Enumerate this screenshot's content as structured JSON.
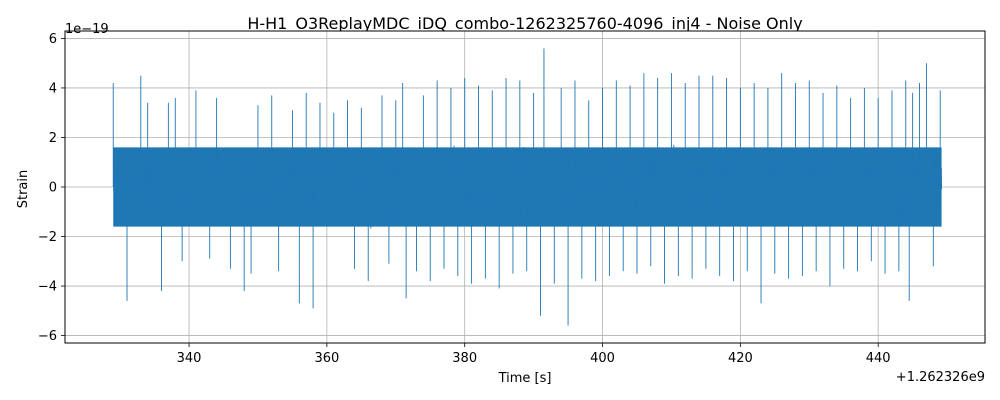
{
  "chart_data": {
    "type": "line",
    "title": "H-H1_O3ReplayMDC_iDQ_combo-1262325760-4096_inj4 - Noise Only",
    "xlabel": "Time [s]",
    "ylabel": "Strain",
    "x_offset_label": "+1.262326e9",
    "y_scale_label": "1e−19",
    "xlim": [
      322.0,
      455.5
    ],
    "ylim": [
      -6.3,
      6.3
    ],
    "x_ticks": [
      340,
      360,
      380,
      400,
      420,
      440
    ],
    "x_tick_labels": [
      "340",
      "360",
      "380",
      "400",
      "420",
      "440"
    ],
    "y_ticks": [
      -6,
      -4,
      -2,
      0,
      2,
      4,
      6
    ],
    "y_tick_labels": [
      "−6",
      "−4",
      "−2",
      "0",
      "2",
      "4",
      "6"
    ],
    "grid": true,
    "legend": "none",
    "line_color": "#1f77b4",
    "series": [
      {
        "x_range": [
          329.0,
          449.2
        ],
        "envelope": [
          [
            329.0,
            4.2,
            5.1
          ],
          [
            331.0,
            -4.6,
            5.1
          ],
          [
            333.0,
            4.5,
            5.1
          ],
          [
            334.0,
            3.4,
            5.1
          ],
          [
            336.0,
            -4.2,
            5.1
          ],
          [
            337.0,
            3.4,
            5.1
          ],
          [
            338.0,
            3.6,
            5.1
          ],
          [
            339.0,
            -3.0,
            5.1
          ],
          [
            341.0,
            3.9,
            5.1
          ],
          [
            343.0,
            -2.9,
            5.1
          ],
          [
            344.0,
            3.6,
            5.1
          ],
          [
            346.0,
            -3.3,
            5.1
          ],
          [
            348.0,
            -4.2,
            5.1
          ],
          [
            349.0,
            -3.5,
            5.1
          ],
          [
            350.0,
            3.3,
            5.1
          ],
          [
            352.0,
            3.7,
            5.1
          ],
          [
            353.0,
            -3.4,
            5.1
          ],
          [
            355.0,
            3.1,
            5.1
          ],
          [
            356.0,
            -4.7,
            5.1
          ],
          [
            357.0,
            3.8,
            5.1
          ],
          [
            358.0,
            -4.9,
            5.1
          ],
          [
            359.0,
            3.4,
            5.1
          ],
          [
            361.0,
            3.0,
            5.1
          ],
          [
            363.0,
            3.5,
            5.1
          ],
          [
            364.0,
            -3.3,
            5.1
          ],
          [
            365.0,
            3.2,
            5.1
          ],
          [
            366.0,
            -3.8,
            5.1
          ],
          [
            368.0,
            3.7,
            5.1
          ],
          [
            369.0,
            -3.1,
            5.1
          ],
          [
            370.0,
            3.5,
            5.1
          ],
          [
            371.0,
            4.2,
            5.1
          ],
          [
            371.5,
            -4.5,
            5.1
          ],
          [
            373.0,
            -3.4,
            5.1
          ],
          [
            374.0,
            3.7,
            5.1
          ],
          [
            375.0,
            -3.8,
            5.1
          ],
          [
            376.0,
            4.3,
            5.1
          ],
          [
            377.0,
            -3.3,
            5.1
          ],
          [
            378.0,
            4.0,
            5.1
          ],
          [
            379.0,
            -3.6,
            5.1
          ],
          [
            380.0,
            4.4,
            5.1
          ],
          [
            381.0,
            -3.9,
            5.1
          ],
          [
            382.0,
            4.1,
            5.1
          ],
          [
            383.0,
            -3.7,
            5.1
          ],
          [
            384.0,
            3.9,
            5.1
          ],
          [
            385.0,
            -4.1,
            5.1
          ],
          [
            386.0,
            4.4,
            5.1
          ],
          [
            387.0,
            -3.5,
            5.1
          ],
          [
            388.0,
            4.3,
            5.1
          ],
          [
            389.0,
            -3.4,
            5.1
          ],
          [
            390.0,
            3.8,
            5.1
          ],
          [
            391.0,
            -5.2,
            5.1
          ],
          [
            391.5,
            5.6,
            5.1
          ],
          [
            393.0,
            -3.9,
            5.1
          ],
          [
            394.0,
            4.0,
            5.1
          ],
          [
            395.0,
            -5.6,
            5.1
          ],
          [
            396.0,
            4.3,
            5.1
          ],
          [
            397.0,
            -3.7,
            5.1
          ],
          [
            398.0,
            3.5,
            5.1
          ],
          [
            399.0,
            -3.8,
            5.1
          ],
          [
            400.0,
            4.0,
            5.1
          ],
          [
            401.0,
            -3.6,
            5.1
          ],
          [
            402.0,
            4.3,
            5.1
          ],
          [
            403.0,
            -3.4,
            5.1
          ],
          [
            404.0,
            4.1,
            5.1
          ],
          [
            405.0,
            -3.5,
            5.1
          ],
          [
            406.0,
            4.6,
            5.1
          ],
          [
            407.0,
            -3.2,
            5.1
          ],
          [
            408.0,
            4.4,
            5.1
          ],
          [
            409.0,
            -3.9,
            5.1
          ],
          [
            410.0,
            4.6,
            5.1
          ],
          [
            411.0,
            -3.6,
            5.1
          ],
          [
            412.0,
            4.2,
            5.1
          ],
          [
            413.0,
            -3.7,
            5.1
          ],
          [
            414.0,
            4.5,
            5.1
          ],
          [
            415.0,
            -3.3,
            5.1
          ],
          [
            416.0,
            4.5,
            5.1
          ],
          [
            417.0,
            -3.6,
            5.1
          ],
          [
            418.0,
            4.4,
            5.1
          ],
          [
            419.0,
            -3.8,
            5.1
          ],
          [
            420.0,
            4.0,
            5.1
          ],
          [
            421.0,
            -3.4,
            5.1
          ],
          [
            422.0,
            4.2,
            5.1
          ],
          [
            423.0,
            -4.7,
            5.1
          ],
          [
            424.0,
            4.0,
            5.1
          ],
          [
            425.0,
            -3.5,
            5.1
          ],
          [
            426.0,
            4.6,
            5.1
          ],
          [
            427.0,
            -3.7,
            5.1
          ],
          [
            428.0,
            4.2,
            5.1
          ],
          [
            429.0,
            -3.6,
            5.1
          ],
          [
            430.0,
            4.3,
            5.1
          ],
          [
            431.0,
            -3.4,
            5.1
          ],
          [
            432.0,
            3.8,
            5.1
          ],
          [
            433.0,
            -4.0,
            5.1
          ],
          [
            434.0,
            4.1,
            5.1
          ],
          [
            435.0,
            -3.3,
            5.1
          ],
          [
            436.0,
            3.6,
            5.1
          ],
          [
            437.0,
            -3.4,
            5.1
          ],
          [
            438.0,
            4.0,
            5.1
          ],
          [
            439.0,
            -3.0,
            5.1
          ],
          [
            440.0,
            3.6,
            5.1
          ],
          [
            441.0,
            -3.5,
            5.1
          ],
          [
            442.0,
            3.9,
            5.1
          ],
          [
            443.0,
            -3.4,
            5.1
          ],
          [
            444.0,
            4.3,
            5.1
          ],
          [
            444.5,
            -4.6,
            5.1
          ],
          [
            445.0,
            3.8,
            5.1
          ],
          [
            446.0,
            4.2,
            5.1
          ],
          [
            447.0,
            5.0,
            5.1
          ],
          [
            448.0,
            -3.2,
            5.1
          ],
          [
            449.0,
            3.9,
            5.1
          ]
        ]
      }
    ]
  }
}
